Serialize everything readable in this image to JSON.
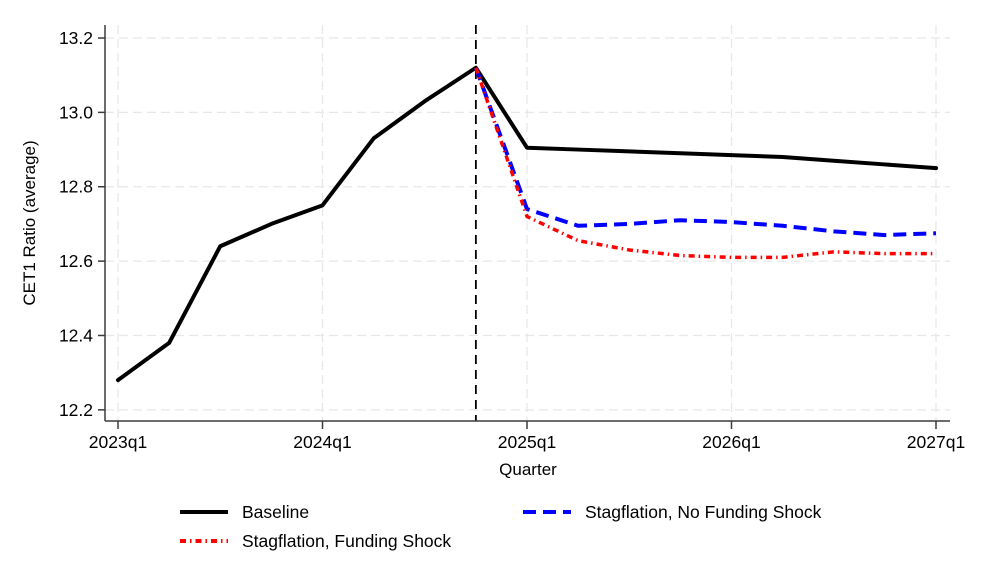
{
  "chart_data": {
    "type": "line",
    "title": "",
    "xlabel": "Quarter",
    "ylabel": "CET1 Ratio (average)",
    "x_tick_labels": [
      "2023q1",
      "2024q1",
      "2025q1",
      "2026q1",
      "2027q1"
    ],
    "x_tick_positions": [
      0,
      4,
      8,
      12,
      16
    ],
    "x_unit": "quarter index from 2023q1",
    "y_tick_labels": [
      "12.2",
      "12.4",
      "12.6",
      "12.8",
      "13.0",
      "13.2"
    ],
    "y_tick_values": [
      12.2,
      12.4,
      12.6,
      12.8,
      13.0,
      13.2
    ],
    "ylim": [
      12.17,
      13.235
    ],
    "grid": "both-dashed",
    "grid_color": "#e7e7e7",
    "axis_color": "#3b3b3b",
    "reference_line": {
      "x_index": 7,
      "quarter": "2024q4",
      "color": "#000000",
      "style": "dashed"
    },
    "series": [
      {
        "name": "Baseline",
        "color": "#000000",
        "style": "solid",
        "start_index": 0,
        "quarters": [
          "2023q1",
          "2023q2",
          "2023q3",
          "2023q4",
          "2024q1",
          "2024q2",
          "2024q3",
          "2024q4",
          "2025q1",
          "2025q2",
          "2025q3",
          "2025q4",
          "2026q1",
          "2026q2",
          "2026q3",
          "2026q4",
          "2027q1"
        ],
        "values": [
          12.28,
          12.38,
          12.64,
          12.7,
          12.75,
          12.93,
          13.03,
          13.12,
          12.905,
          12.9,
          12.895,
          12.89,
          12.885,
          12.88,
          12.87,
          12.86,
          12.85
        ]
      },
      {
        "name": "Stagflation, No Funding Shock",
        "color": "#0000ff",
        "style": "dashed",
        "start_index": 7,
        "quarters": [
          "2024q4",
          "2025q1",
          "2025q2",
          "2025q3",
          "2025q4",
          "2026q1",
          "2026q2",
          "2026q3",
          "2026q4",
          "2027q1"
        ],
        "values": [
          13.12,
          12.74,
          12.695,
          12.7,
          12.71,
          12.705,
          12.695,
          12.68,
          12.67,
          12.675
        ]
      },
      {
        "name": "Stagflation, Funding Shock",
        "color": "#ff0000",
        "style": "dashdot",
        "start_index": 7,
        "quarters": [
          "2024q4",
          "2025q1",
          "2025q2",
          "2025q3",
          "2025q4",
          "2026q1",
          "2026q2",
          "2026q3",
          "2026q4",
          "2027q1"
        ],
        "values": [
          13.12,
          12.72,
          12.655,
          12.63,
          12.615,
          12.61,
          12.61,
          12.625,
          12.62,
          12.62
        ]
      }
    ],
    "legend_position": "bottom"
  }
}
